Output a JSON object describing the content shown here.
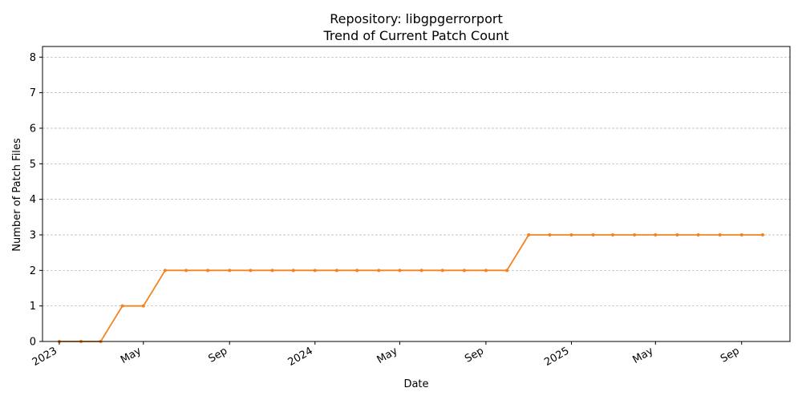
{
  "colors": {
    "line": "#f5821f",
    "grid": "#b0b0b0",
    "axis": "#000000"
  },
  "chart_data": {
    "type": "line",
    "title": "Repository: libgpgerrorport",
    "subtitle": "Trend of Current Patch Count",
    "xlabel": "Date",
    "ylabel": "Number of Patch Files",
    "ylim": [
      0,
      8.3
    ],
    "xlim": [
      "2022-12-08",
      "2025-11-09"
    ],
    "yticks": [
      0,
      1,
      2,
      3,
      4,
      5,
      6,
      7,
      8
    ],
    "xticks": [
      {
        "date": "2023-01-01",
        "label": "2023"
      },
      {
        "date": "2023-05-01",
        "label": "May"
      },
      {
        "date": "2023-09-01",
        "label": "Sep"
      },
      {
        "date": "2024-01-01",
        "label": "2024"
      },
      {
        "date": "2024-05-01",
        "label": "May"
      },
      {
        "date": "2024-09-01",
        "label": "Sep"
      },
      {
        "date": "2025-01-01",
        "label": "2025"
      },
      {
        "date": "2025-05-01",
        "label": "May"
      },
      {
        "date": "2025-09-01",
        "label": "Sep"
      }
    ],
    "grid": "y-dashed",
    "series": [
      {
        "x": [
          "2023-01-01",
          "2023-02-01",
          "2023-03-01",
          "2023-04-01",
          "2023-05-01",
          "2023-06-01",
          "2023-07-01",
          "2023-08-01",
          "2023-09-01",
          "2023-10-01",
          "2023-11-01",
          "2023-12-01",
          "2024-01-01",
          "2024-02-01",
          "2024-03-01",
          "2024-04-01",
          "2024-05-01",
          "2024-06-01",
          "2024-07-01",
          "2024-08-01",
          "2024-09-01",
          "2024-10-01",
          "2024-11-01",
          "2024-12-01",
          "2025-01-01",
          "2025-02-01",
          "2025-03-01",
          "2025-04-01",
          "2025-05-01",
          "2025-06-01",
          "2025-07-01",
          "2025-08-01",
          "2025-09-01",
          "2025-10-01"
        ],
        "values": [
          0,
          0,
          0,
          1,
          1,
          2,
          2,
          2,
          2,
          2,
          2,
          2,
          2,
          2,
          2,
          2,
          2,
          2,
          2,
          2,
          2,
          2,
          3,
          3,
          3,
          3,
          3,
          3,
          3,
          3,
          3,
          3,
          3,
          3
        ]
      }
    ]
  }
}
